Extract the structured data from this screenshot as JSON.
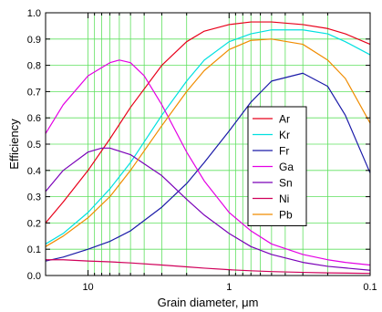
{
  "chart_data": {
    "type": "line",
    "xlabel": "Grain diameter, μm",
    "ylabel": "Efficiency",
    "x_scale": "log",
    "x_reversed": true,
    "xlim": [
      20,
      0.1
    ],
    "ylim": [
      0,
      1.0
    ],
    "x_tick_labels": [
      "10",
      "1",
      "0.1"
    ],
    "x_tick_values": [
      10,
      1,
      0.1
    ],
    "y_tick_labels": [
      "0.0",
      "0.1",
      "0.2",
      "0.3",
      "0.4",
      "0.5",
      "0.6",
      "0.7",
      "0.8",
      "0.9",
      "1.0"
    ],
    "y_tick_values": [
      0,
      0.1,
      0.2,
      0.3,
      0.4,
      0.5,
      0.6,
      0.7,
      0.8,
      0.9,
      1.0
    ],
    "grid": true,
    "legend_position": "center-right",
    "series": [
      {
        "name": "Ar",
        "color": "#e8001a",
        "x": [
          20,
          15,
          10,
          7,
          5,
          3,
          2,
          1.5,
          1,
          0.7,
          0.5,
          0.3,
          0.2,
          0.15,
          0.1
        ],
        "y": [
          0.2,
          0.28,
          0.4,
          0.52,
          0.64,
          0.8,
          0.89,
          0.93,
          0.955,
          0.965,
          0.965,
          0.955,
          0.94,
          0.92,
          0.88
        ]
      },
      {
        "name": "Kr",
        "color": "#00e0e0",
        "x": [
          20,
          15,
          10,
          7,
          5,
          3,
          2,
          1.5,
          1,
          0.7,
          0.5,
          0.3,
          0.2,
          0.15,
          0.1
        ],
        "y": [
          0.12,
          0.16,
          0.24,
          0.33,
          0.43,
          0.61,
          0.74,
          0.82,
          0.89,
          0.92,
          0.935,
          0.935,
          0.92,
          0.89,
          0.84
        ]
      },
      {
        "name": "Fr",
        "color": "#1a1aa8",
        "x": [
          20,
          15,
          10,
          7,
          5,
          3,
          2,
          1.5,
          1,
          0.7,
          0.5,
          0.3,
          0.2,
          0.15,
          0.1
        ],
        "y": [
          0.055,
          0.07,
          0.1,
          0.13,
          0.17,
          0.26,
          0.35,
          0.43,
          0.55,
          0.66,
          0.74,
          0.77,
          0.72,
          0.61,
          0.39
        ]
      },
      {
        "name": "Ga",
        "color": "#e400e4",
        "x": [
          20,
          15,
          10,
          7,
          6,
          5,
          4,
          3,
          2,
          1.5,
          1,
          0.7,
          0.5,
          0.3,
          0.2,
          0.15,
          0.1
        ],
        "y": [
          0.54,
          0.65,
          0.76,
          0.81,
          0.82,
          0.81,
          0.76,
          0.65,
          0.47,
          0.36,
          0.24,
          0.17,
          0.12,
          0.08,
          0.06,
          0.05,
          0.04
        ]
      },
      {
        "name": "Sn",
        "color": "#7a00b8",
        "x": [
          20,
          15,
          10,
          8,
          7,
          5,
          3,
          2,
          1.5,
          1,
          0.7,
          0.5,
          0.3,
          0.2,
          0.1
        ],
        "y": [
          0.32,
          0.4,
          0.47,
          0.485,
          0.485,
          0.46,
          0.38,
          0.29,
          0.23,
          0.16,
          0.11,
          0.08,
          0.05,
          0.035,
          0.02
        ]
      },
      {
        "name": "Ni",
        "color": "#d0005a",
        "x": [
          20,
          15,
          10,
          7,
          5,
          3,
          2,
          1.5,
          1,
          0.7,
          0.5,
          0.3,
          0.2,
          0.1
        ],
        "y": [
          0.06,
          0.06,
          0.055,
          0.052,
          0.048,
          0.04,
          0.033,
          0.028,
          0.022,
          0.018,
          0.015,
          0.012,
          0.01,
          0.008
        ]
      },
      {
        "name": "Pb",
        "color": "#f08c00",
        "x": [
          20,
          15,
          10,
          7,
          5,
          3,
          2,
          1.5,
          1,
          0.7,
          0.5,
          0.3,
          0.2,
          0.15,
          0.1
        ],
        "y": [
          0.11,
          0.15,
          0.22,
          0.3,
          0.4,
          0.57,
          0.7,
          0.78,
          0.86,
          0.895,
          0.9,
          0.88,
          0.82,
          0.75,
          0.58
        ]
      }
    ]
  }
}
